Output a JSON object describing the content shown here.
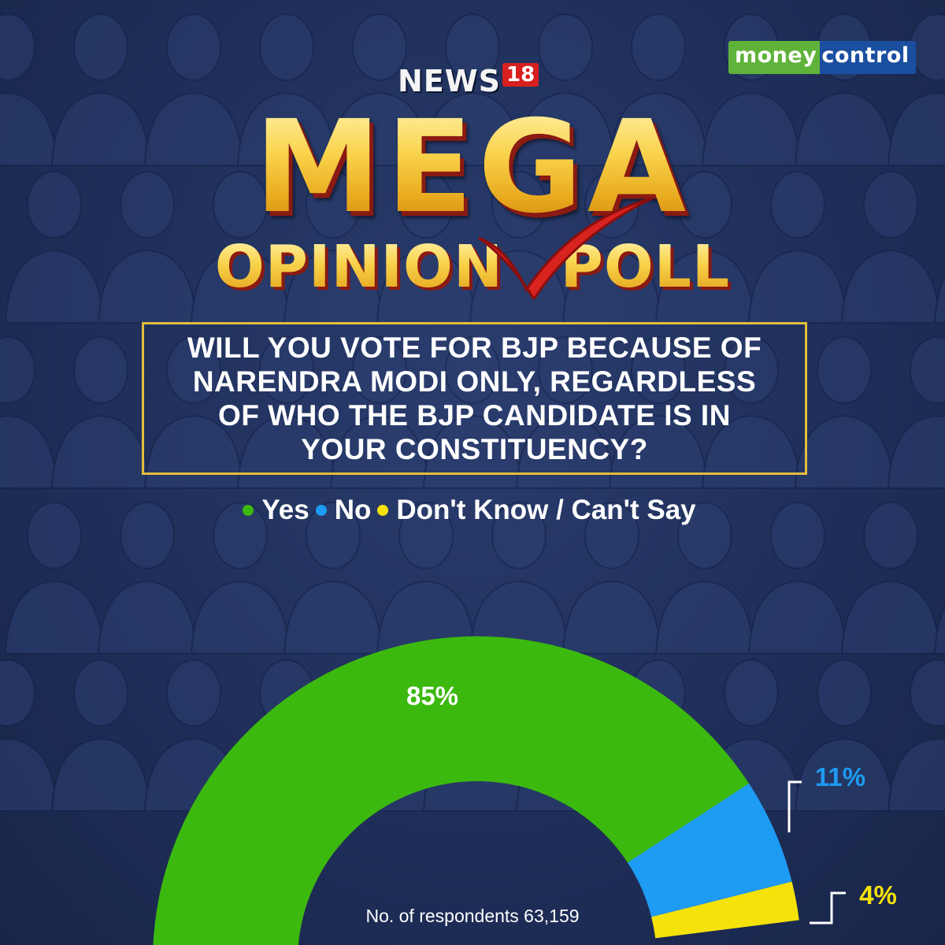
{
  "logos": {
    "moneycontrol_a": "money",
    "moneycontrol_b": "control",
    "news_word": "NEWS",
    "news_number": "18"
  },
  "title": {
    "mega": "MEGA",
    "subtitle": "OPINION POLL"
  },
  "question": "WILL YOU VOTE FOR BJP BECAUSE OF NARENDRA MODI ONLY, REGARDLESS OF WHO THE BJP CANDIDATE IS IN YOUR CONSTITUENCY?",
  "respondents_label": "No. of respondents 63,159",
  "colors": {
    "yes": "#3cb90e",
    "no": "#1e9bf2",
    "dont_know": "#f5e20a",
    "gold": "#e3bd3d",
    "background": "#1f2f5a"
  },
  "chart_data": {
    "type": "pie",
    "subtype": "semi-donut",
    "categories": [
      "Yes",
      "No",
      "Don't Know / Can't Say"
    ],
    "values": [
      85,
      11,
      4
    ],
    "data_labels": [
      "85%",
      "11%",
      "4%"
    ],
    "legend": {
      "placement": "top-center",
      "entries": [
        "Yes",
        "No",
        "Don't Know / Can't Say"
      ]
    }
  }
}
